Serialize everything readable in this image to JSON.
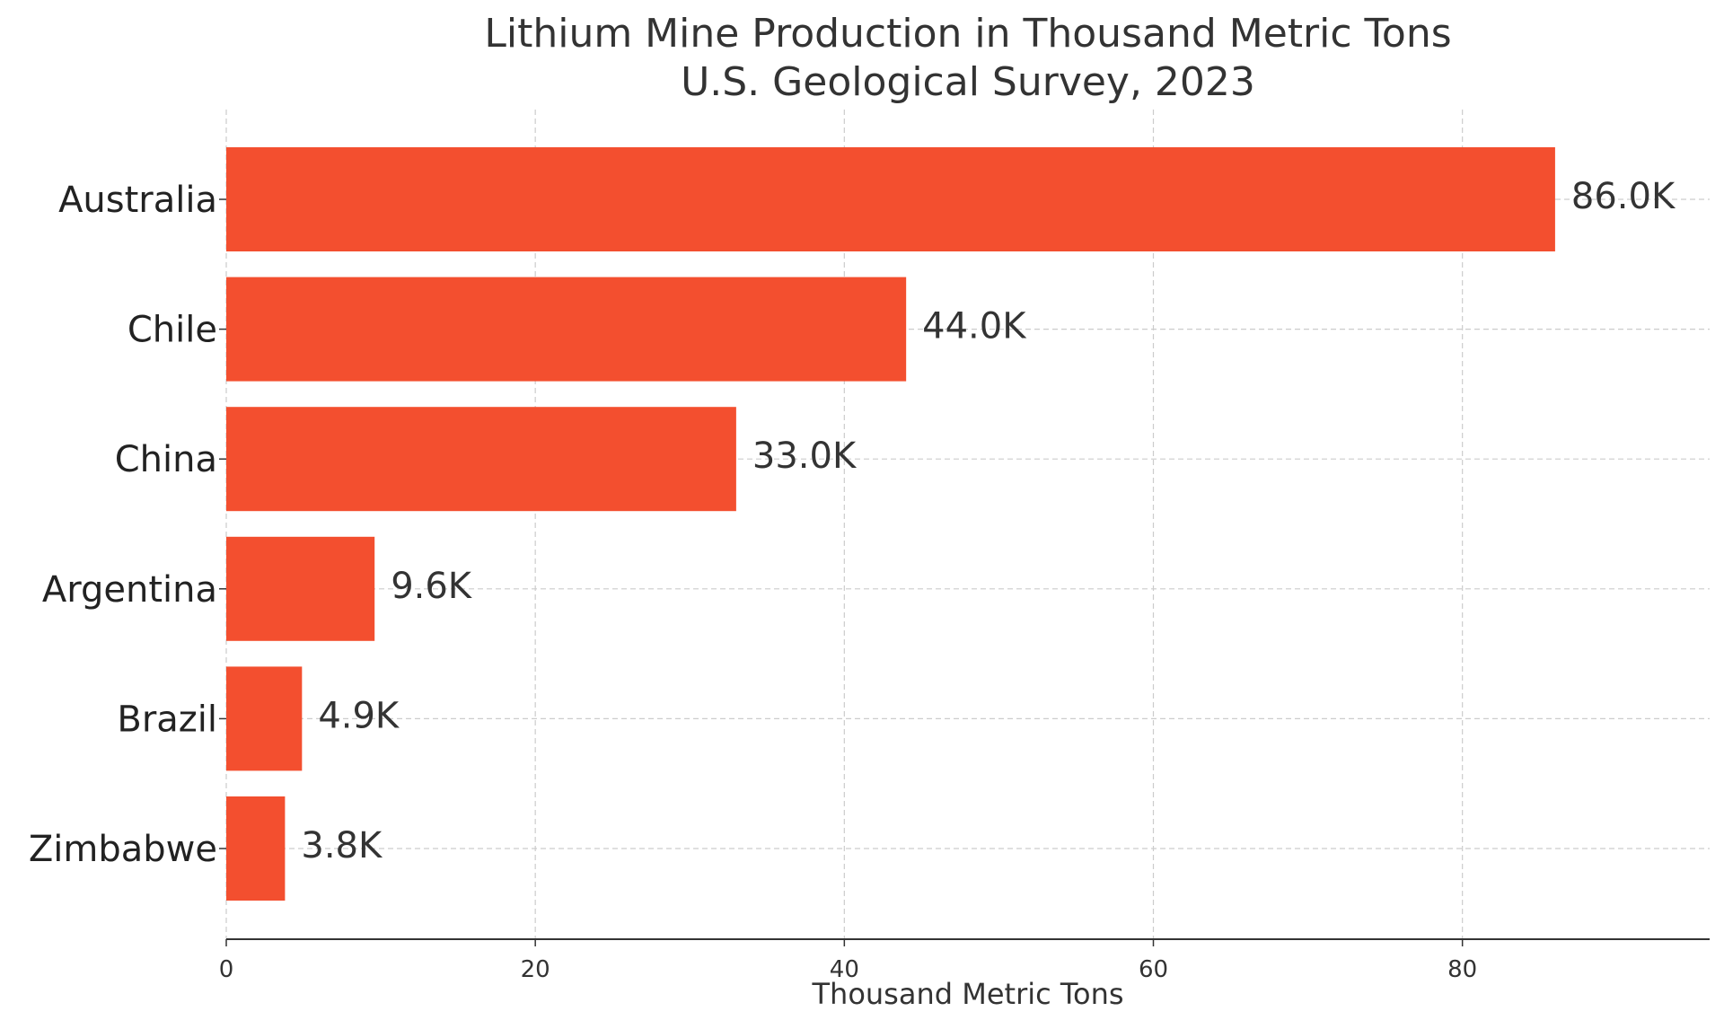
{
  "chart_data": {
    "type": "bar",
    "orientation": "horizontal",
    "title": "Lithium Mine Production in Thousand Metric Tons",
    "subtitle": "U.S. Geological Survey, 2023",
    "xlabel": "Thousand Metric Tons",
    "ylabel": "",
    "categories": [
      "Australia",
      "Chile",
      "China",
      "Argentina",
      "Brazil",
      "Zimbabwe"
    ],
    "values": [
      86.0,
      44.0,
      33.0,
      9.6,
      4.9,
      3.8
    ],
    "data_labels": [
      "86.0K",
      "44.0K",
      "33.0K",
      "9.6K",
      "4.9K",
      "3.8K"
    ],
    "xlim": [
      0,
      96
    ],
    "xticks": [
      0,
      20,
      40,
      60,
      80
    ],
    "xtick_labels": [
      "0",
      "20",
      "40",
      "60",
      "80"
    ],
    "grid": true,
    "legend": "none",
    "bar_color": "#f34f2f",
    "text_color": "#333333",
    "grid_color": "#cccccc"
  }
}
